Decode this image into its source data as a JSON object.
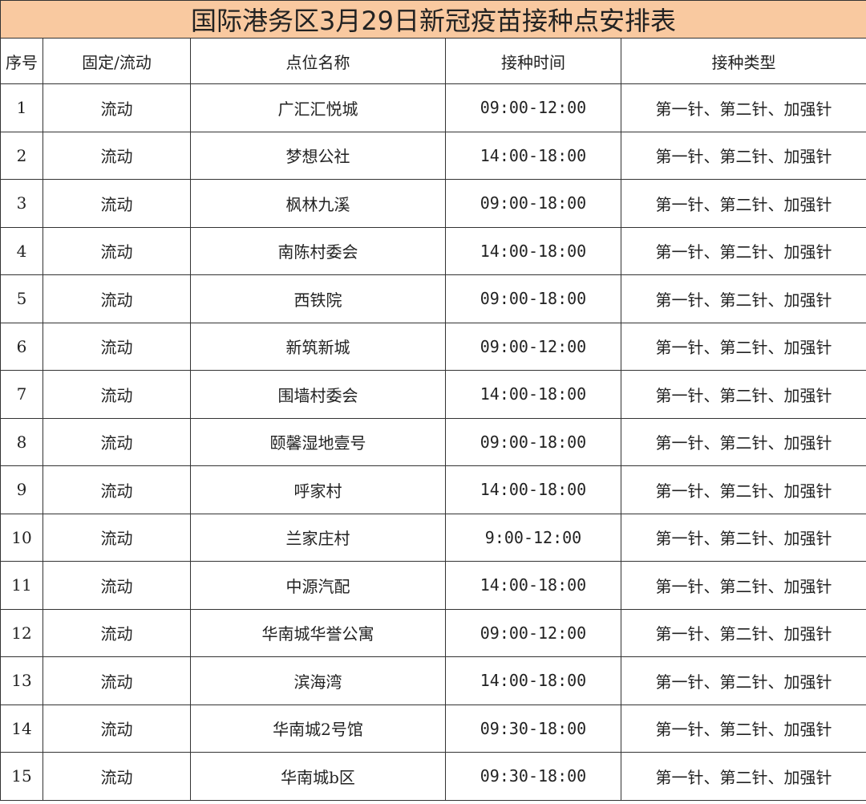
{
  "title": "国际港务区3月29日新冠疫苗接种点安排表",
  "header_color": "#f9c9a0",
  "columns": [
    "序号",
    "固定/流动",
    "点位名称",
    "接种时间",
    "接种类型"
  ],
  "rows": [
    [
      "1",
      "流动",
      "广汇汇悦城",
      "09:00-12:00",
      "第一针、第二针、加强针"
    ],
    [
      "2",
      "流动",
      "梦想公社",
      "14:00-18:00",
      "第一针、第二针、加强针"
    ],
    [
      "3",
      "流动",
      "枫林九溪",
      "09:00-18:00",
      "第一针、第二针、加强针"
    ],
    [
      "4",
      "流动",
      "南陈村委会",
      "14:00-18:00",
      "第一针、第二针、加强针"
    ],
    [
      "5",
      "流动",
      "西铁院",
      "09:00-18:00",
      "第一针、第二针、加强针"
    ],
    [
      "6",
      "流动",
      "新筑新城",
      "09:00-12:00",
      "第一针、第二针、加强针"
    ],
    [
      "7",
      "流动",
      "围墙村委会",
      "14:00-18:00",
      "第一针、第二针、加强针"
    ],
    [
      "8",
      "流动",
      "颐馨湿地壹号",
      "09:00-18:00",
      "第一针、第二针、加强针"
    ],
    [
      "9",
      "流动",
      "呼家村",
      "14:00-18:00",
      "第一针、第二针、加强针"
    ],
    [
      "10",
      "流动",
      "兰家庄村",
      "9:00-12:00",
      "第一针、第二针、加强针"
    ],
    [
      "11",
      "流动",
      "中源汽配",
      "14:00-18:00",
      "第一针、第二针、加强针"
    ],
    [
      "12",
      "流动",
      "华南城华誉公寓",
      "09:00-12:00",
      "第一针、第二针、加强针"
    ],
    [
      "13",
      "流动",
      "滨海湾",
      "14:00-18:00",
      "第一针、第二针、加强针"
    ],
    [
      "14",
      "流动",
      "华南城2号馆",
      "09:30-18:00",
      "第一针、第二针、加强针"
    ],
    [
      "15",
      "流动",
      "华南城b区",
      "09:30-18:00",
      "第一针、第二针、加强针"
    ]
  ]
}
